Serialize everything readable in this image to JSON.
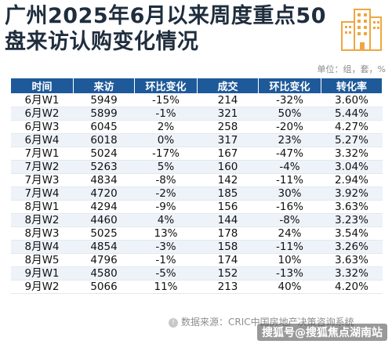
{
  "title": "广州2025年6月以来周度重点50盘来访认购变化情况",
  "unit": "单位：组，套，%",
  "table": {
    "headers": [
      "时间",
      "来访",
      "环比变化",
      "成交",
      "环比变化",
      "转化率"
    ],
    "rows": [
      {
        "time": "6月W1",
        "visits": "5949",
        "visits_chg": "-15%",
        "deals": "214",
        "deals_chg": "-32%",
        "conv": "3.60%"
      },
      {
        "time": "6月W2",
        "visits": "5899",
        "visits_chg": "-1%",
        "deals": "321",
        "deals_chg": "50%",
        "conv": "5.44%"
      },
      {
        "time": "6月W3",
        "visits": "6045",
        "visits_chg": "2%",
        "deals": "258",
        "deals_chg": "-20%",
        "conv": "4.27%"
      },
      {
        "time": "6月W4",
        "visits": "6018",
        "visits_chg": "0%",
        "deals": "317",
        "deals_chg": "23%",
        "conv": "5.27%"
      },
      {
        "time": "7月W1",
        "visits": "5024",
        "visits_chg": "-17%",
        "deals": "167",
        "deals_chg": "-47%",
        "conv": "3.32%"
      },
      {
        "time": "7月W2",
        "visits": "5263",
        "visits_chg": "5%",
        "deals": "160",
        "deals_chg": "-4%",
        "conv": "3.04%"
      },
      {
        "time": "7月W3",
        "visits": "4834",
        "visits_chg": "-8%",
        "deals": "142",
        "deals_chg": "-11%",
        "conv": "2.94%"
      },
      {
        "time": "7月W4",
        "visits": "4720",
        "visits_chg": "-2%",
        "deals": "185",
        "deals_chg": "30%",
        "conv": "3.92%"
      },
      {
        "time": "8月W1",
        "visits": "4294",
        "visits_chg": "-9%",
        "deals": "156",
        "deals_chg": "-16%",
        "conv": "3.63%"
      },
      {
        "time": "8月W2",
        "visits": "4460",
        "visits_chg": "4%",
        "deals": "144",
        "deals_chg": "-8%",
        "conv": "3.23%"
      },
      {
        "time": "8月W3",
        "visits": "5025",
        "visits_chg": "13%",
        "deals": "178",
        "deals_chg": "24%",
        "conv": "3.54%"
      },
      {
        "time": "8月W4",
        "visits": "4854",
        "visits_chg": "-3%",
        "deals": "158",
        "deals_chg": "-11%",
        "conv": "3.26%"
      },
      {
        "time": "8月W5",
        "visits": "4796",
        "visits_chg": "-1%",
        "deals": "174",
        "deals_chg": "10%",
        "conv": "3.63%"
      },
      {
        "time": "9月W1",
        "visits": "4580",
        "visits_chg": "-5%",
        "deals": "152",
        "deals_chg": "-13%",
        "conv": "3.32%"
      },
      {
        "time": "9月W2",
        "visits": "5066",
        "visits_chg": "11%",
        "deals": "213",
        "deals_chg": "40%",
        "conv": "4.20%"
      }
    ]
  },
  "source": "数据来源：CRIC中国房地产决策咨询系统",
  "watermark": "搜狐号@搜狐焦点湖南站",
  "colors": {
    "header_bg": "#1e5a9a",
    "positive": "#e02020",
    "negative": "#1e9e3a",
    "row_alt": "#eef3fa",
    "logo": "#f0a640"
  },
  "icons": {
    "logo": "building-logo-icon",
    "source": "info-icon"
  }
}
